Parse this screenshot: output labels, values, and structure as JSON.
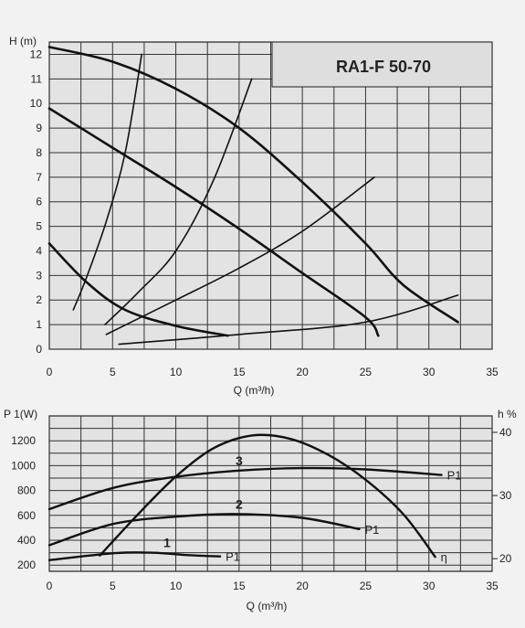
{
  "chart_data": [
    {
      "type": "line",
      "title": "RA1-F 50-70",
      "ylabel": "H (m)",
      "xlabel": "Q (m³/h)",
      "xlim": [
        0,
        35
      ],
      "ylim": [
        0,
        12.5
      ],
      "x_ticks": [
        0,
        5,
        10,
        15,
        20,
        25,
        30,
        35
      ],
      "y_ticks": [
        0,
        1,
        2,
        3,
        4,
        5,
        6,
        7,
        8,
        9,
        10,
        11,
        12
      ],
      "grid": true,
      "series": [
        {
          "kind": "pump-curve",
          "points": [
            [
              0,
              12.3
            ],
            [
              5,
              11.7
            ],
            [
              10,
              10.6
            ],
            [
              15,
              9
            ],
            [
              20,
              6.8
            ],
            [
              25,
              4.3
            ],
            [
              28,
              2.6
            ],
            [
              32.3,
              1.1
            ]
          ]
        },
        {
          "kind": "pump-curve",
          "points": [
            [
              0,
              9.8
            ],
            [
              5,
              8.2
            ],
            [
              10,
              6.6
            ],
            [
              15,
              4.9
            ],
            [
              20,
              3.1
            ],
            [
              25,
              1.3
            ],
            [
              26,
              0.55
            ]
          ]
        },
        {
          "kind": "pump-curve",
          "points": [
            [
              0,
              4.3
            ],
            [
              3,
              2.7
            ],
            [
              6,
              1.6
            ],
            [
              10,
              0.95
            ],
            [
              14.1,
              0.55
            ]
          ]
        },
        {
          "kind": "system-curve",
          "points": [
            [
              1.9,
              1.6
            ],
            [
              3,
              3
            ],
            [
              4.5,
              5.2
            ],
            [
              6,
              8
            ],
            [
              7.3,
              12
            ]
          ]
        },
        {
          "kind": "system-curve",
          "points": [
            [
              4.4,
              1
            ],
            [
              7,
              2.3
            ],
            [
              10,
              4
            ],
            [
              13,
              6.9
            ],
            [
              16,
              11
            ]
          ]
        },
        {
          "kind": "system-curve",
          "points": [
            [
              4.5,
              0.6
            ],
            [
              10,
              2
            ],
            [
              15,
              3.3
            ],
            [
              20,
              4.8
            ],
            [
              25.7,
              7
            ]
          ]
        },
        {
          "kind": "system-curve",
          "points": [
            [
              5.5,
              0.2
            ],
            [
              15,
              0.6
            ],
            [
              25,
              1.1
            ],
            [
              32.3,
              2.2
            ]
          ]
        }
      ]
    },
    {
      "type": "line",
      "ylabel": "P 1(W)",
      "y2label": "h %",
      "xlabel": "Q (m³/h)",
      "xlim": [
        0,
        35
      ],
      "ylim": [
        150,
        1400
      ],
      "y2lim": [
        18,
        42.6
      ],
      "x_ticks": [
        0,
        5,
        10,
        15,
        20,
        25,
        30,
        35
      ],
      "y_ticks": [
        200,
        400,
        600,
        800,
        1000,
        1200
      ],
      "y2_ticks": [
        20,
        30,
        40
      ],
      "grid": true,
      "series": [
        {
          "name": "P1",
          "number": "1",
          "points": [
            [
              0,
              240
            ],
            [
              5,
              295
            ],
            [
              8,
              300
            ],
            [
              11,
              280
            ],
            [
              13.5,
              270
            ]
          ]
        },
        {
          "name": "P1",
          "number": "2",
          "points": [
            [
              0,
              360
            ],
            [
              5,
              530
            ],
            [
              10,
              590
            ],
            [
              15,
              610
            ],
            [
              20,
              580
            ],
            [
              24.5,
              490
            ]
          ]
        },
        {
          "name": "P1",
          "number": "3",
          "points": [
            [
              0,
              650
            ],
            [
              5,
              820
            ],
            [
              10,
              910
            ],
            [
              15,
              960
            ],
            [
              20,
              980
            ],
            [
              25,
              970
            ],
            [
              31,
              925
            ]
          ]
        },
        {
          "name": "η",
          "axis": "right",
          "points": [
            [
              4,
              20.5
            ],
            [
              7,
              27
            ],
            [
              10,
              33
            ],
            [
              13,
              37.5
            ],
            [
              16,
              39.5
            ],
            [
              19,
              39
            ],
            [
              22,
              36.5
            ],
            [
              25,
              32.5
            ],
            [
              28,
              27
            ],
            [
              30.5,
              20.3
            ]
          ]
        }
      ]
    }
  ]
}
